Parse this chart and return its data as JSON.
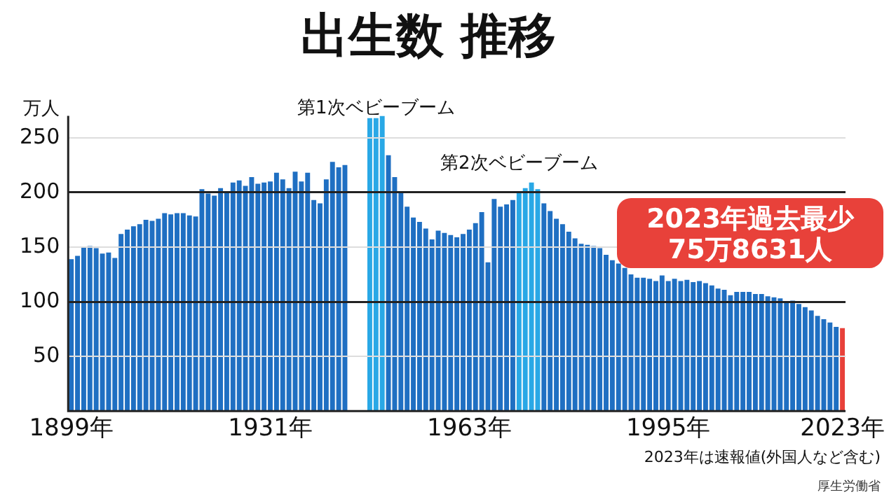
{
  "chart_data": {
    "type": "bar",
    "title": "出生数 推移",
    "ylabel": "万人",
    "categories": [
      "1899年",
      null,
      null,
      null,
      null,
      null,
      null,
      null,
      null,
      null,
      null,
      null,
      null,
      null,
      null,
      null,
      null,
      null,
      null,
      null,
      null,
      null,
      null,
      null,
      null,
      null,
      null,
      null,
      null,
      null,
      null,
      null,
      "1931年",
      null,
      null,
      null,
      null,
      null,
      null,
      null,
      null,
      null,
      null,
      null,
      null,
      null,
      null,
      null,
      null,
      null,
      null,
      null,
      null,
      null,
      null,
      null,
      null,
      null,
      null,
      null,
      null,
      null,
      null,
      null,
      "1963年",
      null,
      null,
      null,
      null,
      null,
      null,
      null,
      null,
      null,
      null,
      null,
      null,
      null,
      null,
      null,
      null,
      null,
      null,
      null,
      null,
      null,
      null,
      null,
      null,
      null,
      null,
      null,
      null,
      null,
      null,
      null,
      "1995年",
      null,
      null,
      null,
      null,
      null,
      null,
      null,
      null,
      null,
      null,
      null,
      null,
      null,
      null,
      null,
      null,
      null,
      null,
      null,
      null,
      null,
      null,
      null,
      null,
      null,
      null,
      null,
      "2023年"
    ],
    "values": [
      139,
      142,
      150,
      151,
      149,
      144,
      145,
      140,
      162,
      166,
      169,
      171,
      175,
      174,
      176,
      181,
      180,
      181,
      181,
      179,
      178,
      203,
      199,
      197,
      204,
      200,
      209,
      211,
      206,
      214,
      208,
      209,
      210,
      218,
      212,
      204,
      219,
      210,
      218,
      193,
      190,
      212,
      228,
      223,
      225,
      null,
      null,
      null,
      268,
      268,
      270,
      234,
      214,
      201,
      187,
      177,
      173,
      167,
      157,
      165,
      163,
      161,
      159,
      162,
      166,
      172,
      182,
      136,
      194,
      187,
      189,
      193,
      200,
      204,
      209,
      203,
      190,
      183,
      176,
      171,
      164,
      158,
      153,
      152,
      151,
      149,
      143,
      138,
      135,
      131,
      125,
      122,
      122,
      121,
      119,
      124,
      119,
      121,
      119,
      120,
      118,
      119,
      117,
      115,
      112,
      111,
      106,
      109,
      109,
      109,
      107,
      107,
      105,
      104,
      103,
      100,
      101,
      98,
      95,
      92,
      87,
      84,
      81,
      77,
      75.8631
    ],
    "colors": [
      "#1f6fc2",
      "#1f6fc2",
      "#1f6fc2",
      "#1f6fc2",
      "#1f6fc2",
      "#1f6fc2",
      "#1f6fc2",
      "#1f6fc2",
      "#1f6fc2",
      "#1f6fc2",
      "#1f6fc2",
      "#1f6fc2",
      "#1f6fc2",
      "#1f6fc2",
      "#1f6fc2",
      "#1f6fc2",
      "#1f6fc2",
      "#1f6fc2",
      "#1f6fc2",
      "#1f6fc2",
      "#1f6fc2",
      "#1f6fc2",
      "#1f6fc2",
      "#1f6fc2",
      "#1f6fc2",
      "#1f6fc2",
      "#1f6fc2",
      "#1f6fc2",
      "#1f6fc2",
      "#1f6fc2",
      "#1f6fc2",
      "#1f6fc2",
      "#1f6fc2",
      "#1f6fc2",
      "#1f6fc2",
      "#1f6fc2",
      "#1f6fc2",
      "#1f6fc2",
      "#1f6fc2",
      "#1f6fc2",
      "#1f6fc2",
      "#1f6fc2",
      "#1f6fc2",
      "#1f6fc2",
      "#1f6fc2",
      "#1f6fc2",
      "#1f6fc2",
      "#1f6fc2",
      "#29a8e6",
      "#29a8e6",
      "#29a8e6",
      "#1f6fc2",
      "#1f6fc2",
      "#1f6fc2",
      "#1f6fc2",
      "#1f6fc2",
      "#1f6fc2",
      "#1f6fc2",
      "#1f6fc2",
      "#1f6fc2",
      "#1f6fc2",
      "#1f6fc2",
      "#1f6fc2",
      "#1f6fc2",
      "#1f6fc2",
      "#1f6fc2",
      "#1f6fc2",
      "#1f6fc2",
      "#1f6fc2",
      "#1f6fc2",
      "#1f6fc2",
      "#1f6fc2",
      "#29a8e6",
      "#29a8e6",
      "#29a8e6",
      "#29a8e6",
      "#1f6fc2",
      "#1f6fc2",
      "#1f6fc2",
      "#1f6fc2",
      "#1f6fc2",
      "#1f6fc2",
      "#1f6fc2",
      "#1f6fc2",
      "#1f6fc2",
      "#1f6fc2",
      "#1f6fc2",
      "#1f6fc2",
      "#1f6fc2",
      "#1f6fc2",
      "#1f6fc2",
      "#1f6fc2",
      "#1f6fc2",
      "#1f6fc2",
      "#1f6fc2",
      "#1f6fc2",
      "#1f6fc2",
      "#1f6fc2",
      "#1f6fc2",
      "#1f6fc2",
      "#1f6fc2",
      "#1f6fc2",
      "#1f6fc2",
      "#1f6fc2",
      "#1f6fc2",
      "#1f6fc2",
      "#1f6fc2",
      "#1f6fc2",
      "#1f6fc2",
      "#1f6fc2",
      "#1f6fc2",
      "#1f6fc2",
      "#1f6fc2",
      "#1f6fc2",
      "#1f6fc2",
      "#1f6fc2",
      "#1f6fc2",
      "#1f6fc2",
      "#1f6fc2",
      "#1f6fc2",
      "#1f6fc2",
      "#1f6fc2",
      "#1f6fc2",
      "#1f6fc2",
      "#e8413a"
    ],
    "ylim": [
      0,
      270
    ],
    "yticks": [
      50,
      100,
      150,
      200,
      250
    ],
    "grid": "y",
    "annotations": [
      "第1次ベビーブーム",
      "第2次ベビーブーム",
      "2023年過去最少\n75万8631人",
      "2023年は速報値(外国人など含む)",
      "厚生労働省"
    ]
  }
}
